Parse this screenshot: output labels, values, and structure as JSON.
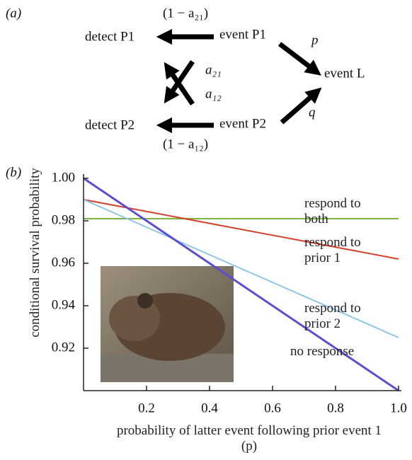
{
  "panel_a": {
    "label": "(a)",
    "nodes": [
      "detect P1",
      "event P1",
      "event L",
      "detect P2",
      "event P2"
    ],
    "edge_labels": [
      "(1 − a₂₁)",
      "p",
      "a₂₁",
      "a₁₂",
      "q",
      "(1 − a₁₂)"
    ]
  },
  "chart_data": {
    "type": "line",
    "panel_label": "(b)",
    "xlabel": "probability of latter event following prior event 1 (p)",
    "ylabel": "conditional survival probability",
    "x": [
      0,
      1
    ],
    "xlim": [
      0,
      1
    ],
    "ylim": [
      0.9,
      1
    ],
    "xticks": [
      0.2,
      0.4,
      0.6,
      0.8,
      {
        "value": 1,
        "label": "1.0"
      }
    ],
    "yticks": [
      0.92,
      0.94,
      0.96,
      0.98,
      {
        "value": 1,
        "label": "1.00"
      }
    ],
    "series": [
      {
        "name": "respond to both",
        "color": "#7cb342",
        "values": [
          0.981,
          0.981
        ]
      },
      {
        "name": "respond to prior 1",
        "color": "#d2432b",
        "values": [
          0.99,
          0.962
        ]
      },
      {
        "name": "respond to prior 2",
        "color": "#8ec6ea",
        "values": [
          0.99,
          0.925
        ]
      },
      {
        "name": "no response",
        "color": "#5b4fcf",
        "values": [
          1,
          0.9
        ]
      }
    ]
  }
}
